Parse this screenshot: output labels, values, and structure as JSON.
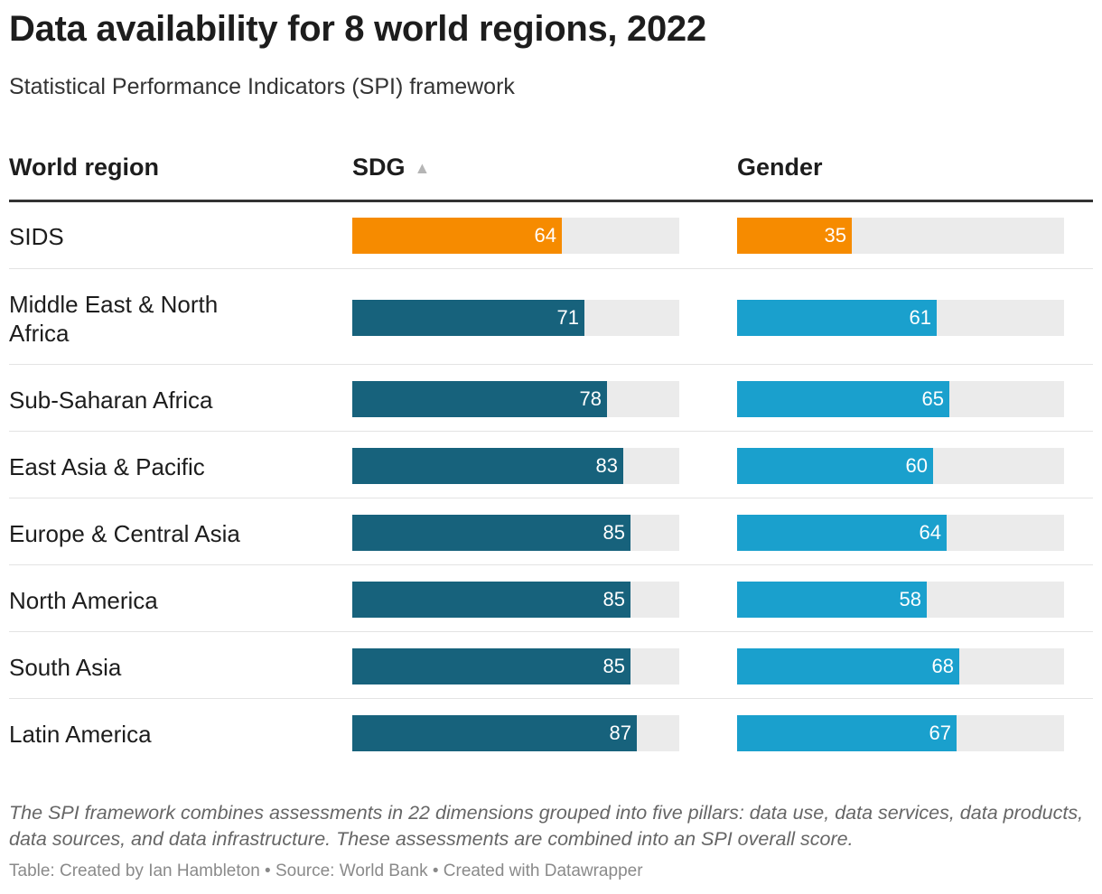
{
  "title": "Data availability for 8 world regions, 2022",
  "subtitle": "Statistical Performance Indicators (SPI) framework",
  "columns": {
    "region": "World region",
    "sdg": "SDG",
    "gender": "Gender",
    "sort_icon": "sort-ascending-icon"
  },
  "colors": {
    "highlight": "#f68b00",
    "sdg": "#17627c",
    "gender": "#1aa0cd",
    "track": "#ebebeb"
  },
  "chart_data": {
    "type": "table",
    "value_max": 100,
    "rows": [
      {
        "region": "SIDS",
        "sdg": 64,
        "gender": 35,
        "highlight": true
      },
      {
        "region": "Middle East & North Africa",
        "sdg": 71,
        "gender": 61,
        "highlight": false
      },
      {
        "region": "Sub-Saharan Africa",
        "sdg": 78,
        "gender": 65,
        "highlight": false
      },
      {
        "region": "East Asia & Pacific",
        "sdg": 83,
        "gender": 60,
        "highlight": false
      },
      {
        "region": "Europe & Central Asia",
        "sdg": 85,
        "gender": 64,
        "highlight": false
      },
      {
        "region": "North America",
        "sdg": 85,
        "gender": 58,
        "highlight": false
      },
      {
        "region": "South Asia",
        "sdg": 85,
        "gender": 68,
        "highlight": false
      },
      {
        "region": "Latin America",
        "sdg": 87,
        "gender": 67,
        "highlight": false
      }
    ]
  },
  "note": "The SPI framework combines assessments in 22 dimensions grouped into five pillars: data use, data services, data products, data sources, and data infrastructure. These assessments are combined into an SPI overall score.",
  "footer": "Table: Created by Ian Hambleton • Source: World Bank • Created with Datawrapper"
}
